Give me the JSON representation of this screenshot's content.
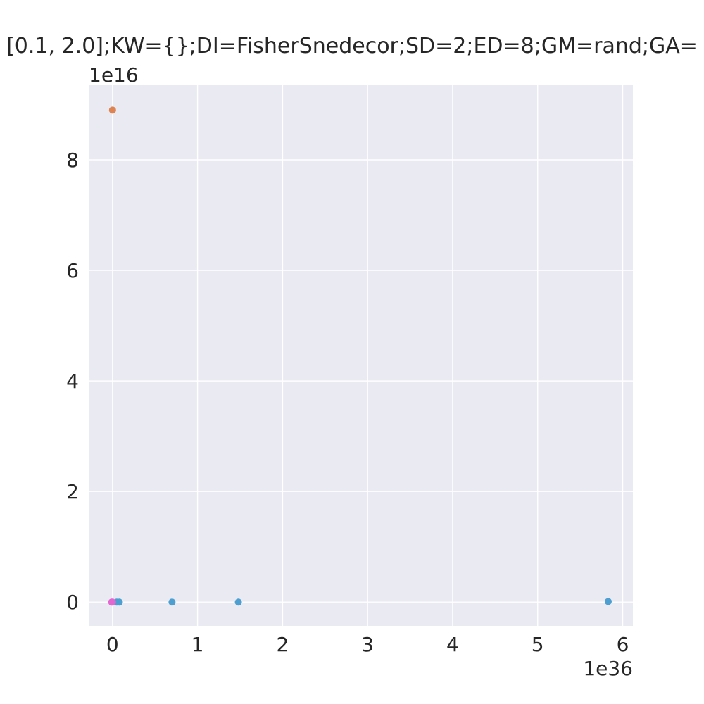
{
  "chart_data": {
    "type": "scatter",
    "title": "[0.1, 2.0];KW={};DI=FisherSnedecor;SD=2;ED=8;GM=rand;GA=",
    "xlabel": "",
    "ylabel": "",
    "x_offset_label": "1e36",
    "y_offset_label": "1e16",
    "xlim": [
      -0.28,
      6.12
    ],
    "ylim": [
      -0.43,
      9.35
    ],
    "x_ticks": [
      0,
      1,
      2,
      3,
      4,
      5,
      6
    ],
    "y_ticks": [
      0,
      2,
      4,
      6,
      8
    ],
    "grid": true,
    "background": "#eaeaf2",
    "series": [
      {
        "color": "#dd8452",
        "points": [
          [
            0.0,
            8.9
          ]
        ]
      },
      {
        "color": "#4c9fd0",
        "points": [
          [
            0.05,
            0.0
          ],
          [
            0.08,
            0.0
          ],
          [
            0.7,
            0.0
          ],
          [
            1.48,
            0.0
          ],
          [
            5.83,
            0.01
          ]
        ]
      },
      {
        "color": "#e466d0",
        "points": [
          [
            -0.01,
            0.0
          ],
          [
            0.0,
            0.0
          ]
        ]
      }
    ]
  }
}
